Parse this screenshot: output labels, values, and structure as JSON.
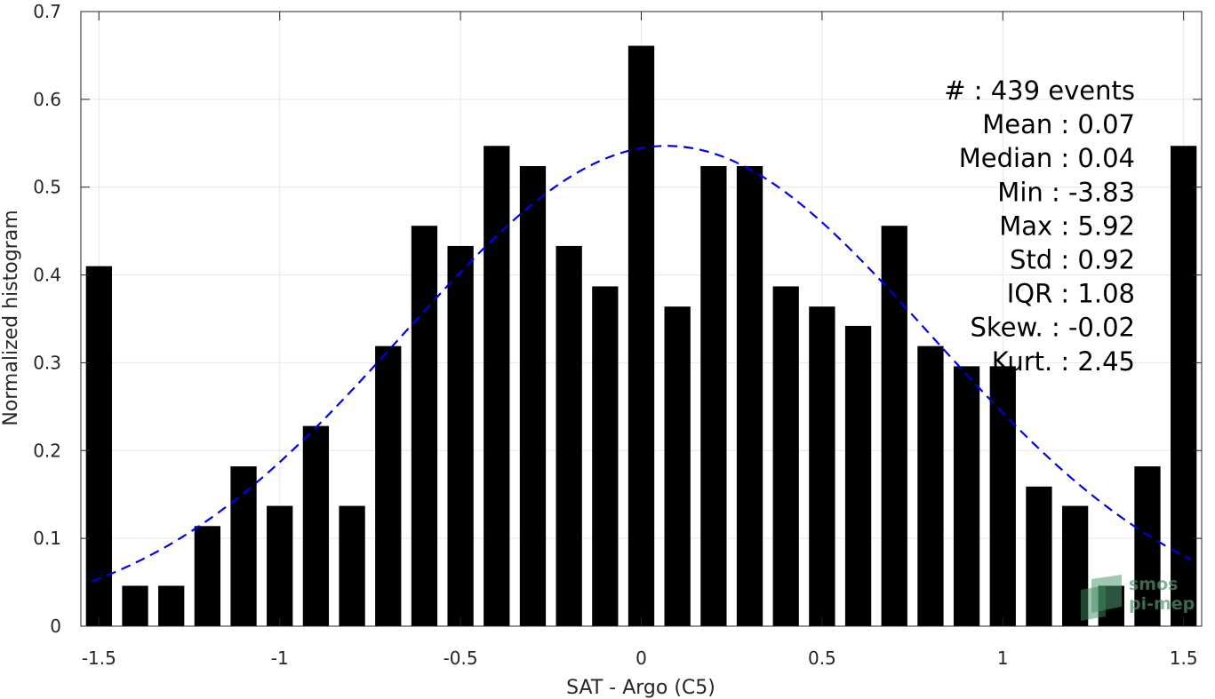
{
  "chart_data": {
    "type": "bar",
    "xlabel": "SAT - Argo (C5)",
    "ylabel": "Normalized histogram",
    "xlim": [
      -1.55,
      1.55
    ],
    "ylim": [
      0,
      0.7
    ],
    "xticks": [
      -1.5,
      -1,
      -0.5,
      0,
      0.5,
      1,
      1.5
    ],
    "xtick_labels": [
      "-1.5",
      "-1",
      "-0.5",
      "0",
      "0.5",
      "1",
      "1.5"
    ],
    "yticks": [
      0,
      0.1,
      0.2,
      0.3,
      0.4,
      0.5,
      0.6,
      0.7
    ],
    "ytick_labels": [
      "0",
      "0.1",
      "0.2",
      "0.3",
      "0.4",
      "0.5",
      "0.6",
      "0.7"
    ],
    "grid": true,
    "bar_color": "#000000",
    "bars": [
      {
        "x": -1.5,
        "value": 0.41
      },
      {
        "x": -1.4,
        "value": 0.046
      },
      {
        "x": -1.3,
        "value": 0.046
      },
      {
        "x": -1.2,
        "value": 0.114
      },
      {
        "x": -1.1,
        "value": 0.182
      },
      {
        "x": -1.0,
        "value": 0.137
      },
      {
        "x": -0.9,
        "value": 0.228
      },
      {
        "x": -0.8,
        "value": 0.137
      },
      {
        "x": -0.7,
        "value": 0.319
      },
      {
        "x": -0.6,
        "value": 0.456
      },
      {
        "x": -0.5,
        "value": 0.433
      },
      {
        "x": -0.4,
        "value": 0.547
      },
      {
        "x": -0.3,
        "value": 0.524
      },
      {
        "x": -0.2,
        "value": 0.433
      },
      {
        "x": -0.1,
        "value": 0.387
      },
      {
        "x": 0.0,
        "value": 0.661
      },
      {
        "x": 0.1,
        "value": 0.364
      },
      {
        "x": 0.2,
        "value": 0.524
      },
      {
        "x": 0.3,
        "value": 0.524
      },
      {
        "x": 0.4,
        "value": 0.387
      },
      {
        "x": 0.5,
        "value": 0.364
      },
      {
        "x": 0.6,
        "value": 0.342
      },
      {
        "x": 0.7,
        "value": 0.456
      },
      {
        "x": 0.8,
        "value": 0.319
      },
      {
        "x": 0.9,
        "value": 0.296
      },
      {
        "x": 1.0,
        "value": 0.296
      },
      {
        "x": 1.1,
        "value": 0.159
      },
      {
        "x": 1.2,
        "value": 0.137
      },
      {
        "x": 1.3,
        "value": 0.046
      },
      {
        "x": 1.4,
        "value": 0.182
      },
      {
        "x": 1.5,
        "value": 0.547
      }
    ],
    "fit_curve": {
      "type": "gaussian",
      "style": "dashed",
      "color": "#0000e6",
      "mean": 0.07,
      "std": 0.73,
      "peak": 0.547,
      "x_range": [
        -1.52,
        1.52
      ]
    },
    "stats": [
      {
        "key": "#",
        "text": "#  : 439 events"
      },
      {
        "key": "mean",
        "text": "Mean : 0.07"
      },
      {
        "key": "median",
        "text": "Median : 0.04"
      },
      {
        "key": "min",
        "text": "Min : -3.83"
      },
      {
        "key": "max",
        "text": "Max : 5.92"
      },
      {
        "key": "std",
        "text": "Std : 0.92"
      },
      {
        "key": "iqr",
        "text": "IQR : 1.08"
      },
      {
        "key": "skew",
        "text": "Skew. : -0.02"
      },
      {
        "key": "kurt",
        "text": "Kurt. : 2.45"
      }
    ]
  },
  "logo": {
    "line1": "smos",
    "line2": "pi-mep",
    "color": "#4f9a72"
  }
}
